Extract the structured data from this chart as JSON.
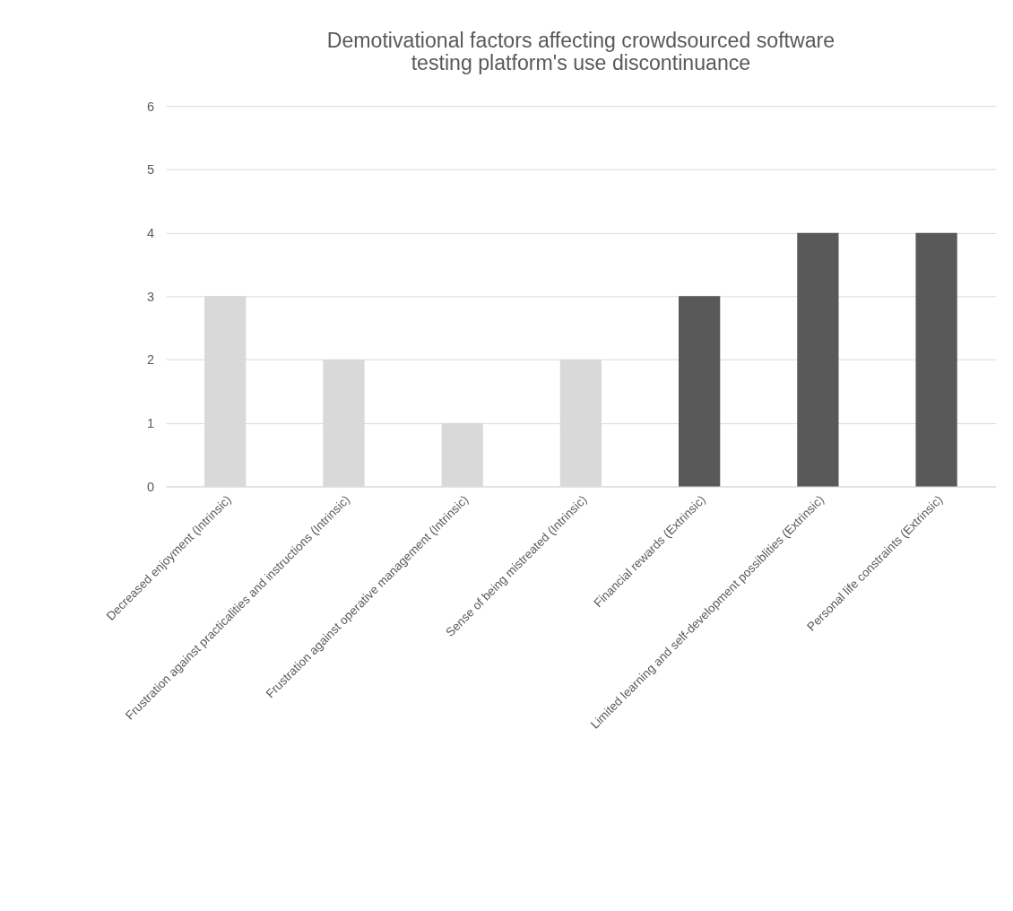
{
  "chart_data": {
    "type": "bar",
    "title": "Demotivational factors affecting crowdsourced software\ntesting platform's use discontinuance",
    "categories": [
      "Decreased enjoyment (Intrinsic)",
      "Frustration against practicalities and instructions (Intrinsic)",
      "Frustration against operative management (Intrinsic)",
      "Sense of being mistreated (Intrinsic)",
      "Financial rewards (Extrinsic)",
      "Limited learning and self-development possiblities (Extrinsic)",
      "Personal life constraints (Extrinsic)"
    ],
    "values": [
      3,
      2,
      1,
      2,
      3,
      4,
      4
    ],
    "colors": [
      "#d9d9d9",
      "#d9d9d9",
      "#d9d9d9",
      "#d9d9d9",
      "#595959",
      "#595959",
      "#595959"
    ],
    "ylim": [
      0,
      6
    ],
    "yticks": [
      0,
      1,
      2,
      3,
      4,
      5,
      6
    ],
    "grid": "y",
    "legend": false
  }
}
